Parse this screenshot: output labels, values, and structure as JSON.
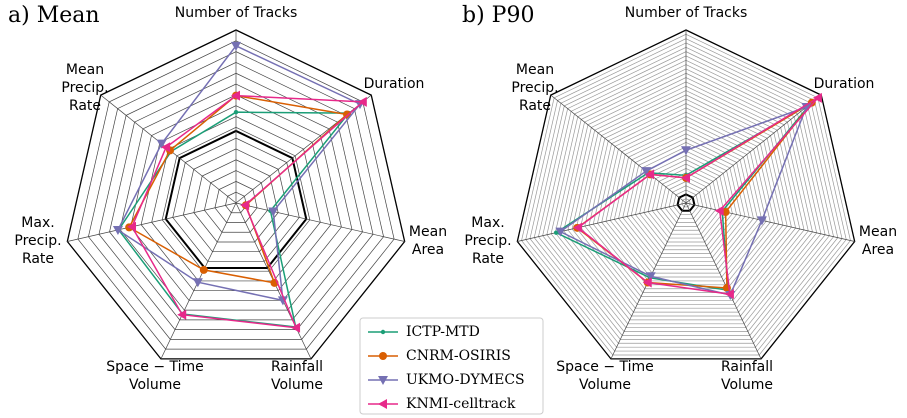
{
  "chart_data": [
    {
      "type": "radar",
      "title": "a) Mean",
      "axes": [
        [
          "Number of Tracks"
        ],
        [
          "Duration"
        ],
        [
          "Mean",
          "Area"
        ],
        [
          "Rainfall",
          "Volume"
        ],
        [
          "Space − Time",
          "Volume"
        ],
        [
          "Max.",
          "Precip.",
          "Rate"
        ],
        [
          "Mean",
          "Precip.",
          "Rate"
        ]
      ],
      "rlim": [
        0,
        2.4
      ],
      "rticks": [
        0.15,
        0.3,
        0.45,
        0.6,
        0.75,
        0.9,
        1.05,
        1.2,
        1.35,
        1.5,
        1.65,
        1.8,
        1.95,
        2.1,
        2.25,
        2.4
      ],
      "reference": 1,
      "series": [
        {
          "name": "ICTP-MTD",
          "color": "#1b9e77",
          "marker": "point",
          "values": [
            1.26,
            2.0,
            0.49,
            1.91,
            1.71,
            1.67,
            1.15
          ]
        },
        {
          "name": "CNRM-OSIRIS",
          "color": "#d95f02",
          "marker": "circle",
          "values": [
            1.49,
            1.97,
            0.14,
            1.23,
            1.03,
            1.52,
            1.17
          ]
        },
        {
          "name": "UKMO-DYMECS",
          "color": "#7570b3",
          "marker": "triangle-down",
          "values": [
            2.18,
            2.2,
            0.53,
            1.5,
            1.22,
            1.68,
            1.32
          ]
        },
        {
          "name": "KNMI-celltrack",
          "color": "#e7298a",
          "marker": "triangle-left",
          "values": [
            1.49,
            2.25,
            0.13,
            1.92,
            1.72,
            1.48,
            1.24
          ]
        }
      ]
    },
    {
      "type": "radar",
      "title": "b) P90",
      "axes": [
        [
          "Number of Tracks"
        ],
        [
          "Duration"
        ],
        [
          "Mean",
          "Area"
        ],
        [
          "Rainfall",
          "Volume"
        ],
        [
          "Space − Time",
          "Volume"
        ],
        [
          "Max.",
          "Precip.",
          "Rate"
        ],
        [
          "Mean",
          "Precip.",
          "Rate"
        ]
      ],
      "rlim": [
        0,
        20
      ],
      "rticks": [
        0.5,
        1,
        1.5,
        2,
        2.5,
        3,
        3.5,
        4,
        4.5,
        5,
        5.5,
        6,
        6.5,
        7,
        7.5,
        8,
        8.5,
        9,
        9.5,
        10,
        10.5,
        11,
        11.5,
        12,
        12.5,
        13,
        13.5,
        14,
        14.5,
        15,
        15.5,
        16,
        16.5,
        17,
        17.5,
        18,
        18.5,
        19,
        19.5,
        20
      ],
      "reference": 1,
      "series": [
        {
          "color": "#1b9e77",
          "marker": "point",
          "values": [
            3.2,
            18.4,
            4.3,
            11.2,
            9.6,
            15.4,
            5.6
          ]
        },
        {
          "color": "#d95f02",
          "marker": "circle",
          "values": [
            2.9,
            18.6,
            4.7,
            10.9,
            10.2,
            12.9,
            5.3
          ]
        },
        {
          "color": "#7570b3",
          "marker": "triangle-down",
          "values": [
            6.1,
            17.8,
            9.0,
            11.8,
            9.4,
            14.9,
            5.9
          ]
        },
        {
          "color": "#e7298a",
          "marker": "triangle-left",
          "values": [
            2.9,
            19.5,
            4.0,
            11.7,
            10.2,
            12.8,
            5.3
          ]
        }
      ]
    }
  ]
}
